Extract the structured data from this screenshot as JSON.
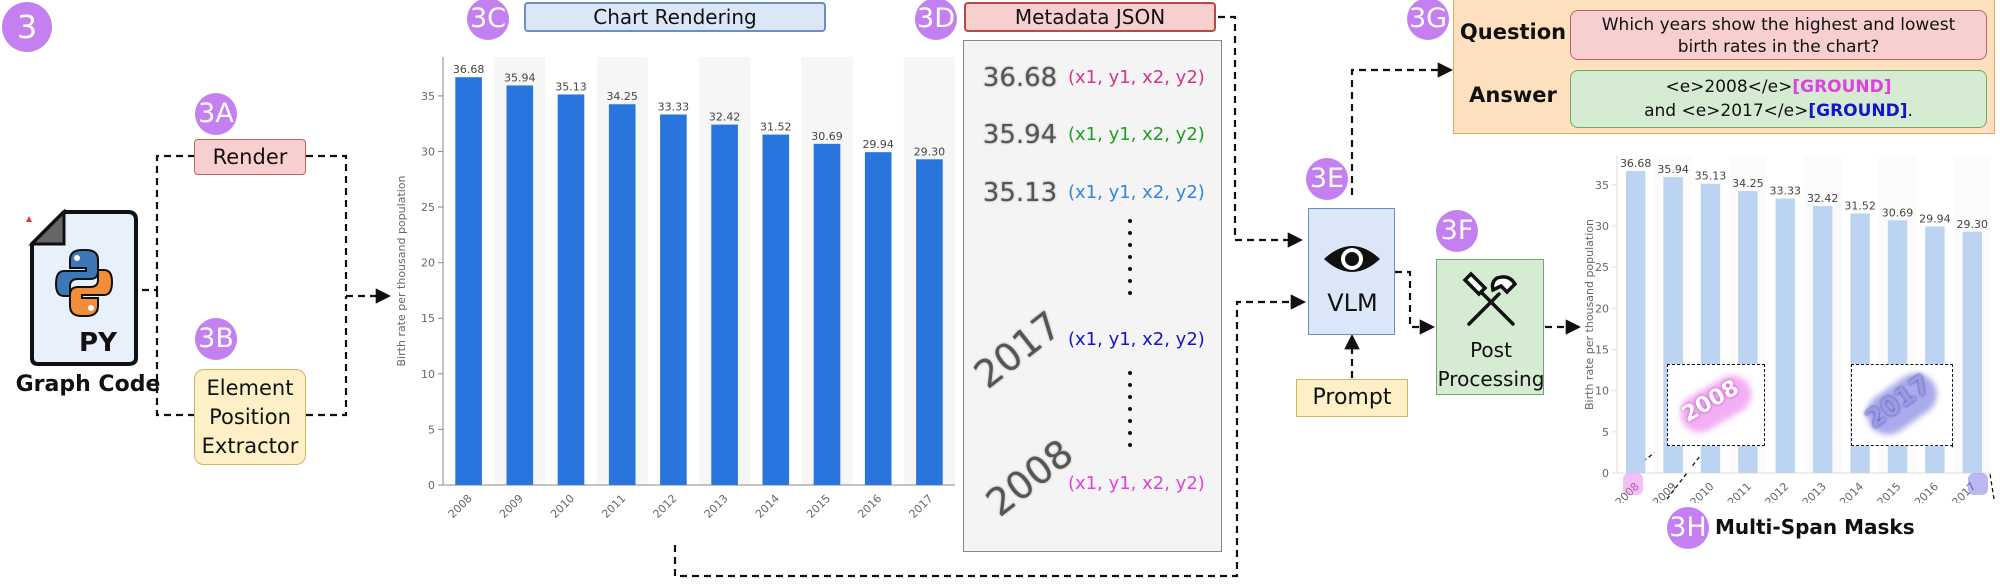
{
  "stage": {
    "main_badge": "3",
    "render_badge": "3A",
    "extractor_badge": "3B",
    "chart_badge": "3C",
    "meta_badge": "3D",
    "vlm_badge": "3E",
    "post_badge": "3F",
    "qa_badge": "3G",
    "masks_badge": "3H"
  },
  "graph_code": {
    "file_ext": "PY",
    "label": "Graph Code"
  },
  "render_label": "Render",
  "extractor_label": [
    "Element",
    "Position",
    "Extractor"
  ],
  "chart_title": "Chart Rendering",
  "meta_title": "Metadata JSON",
  "metadata_entries": [
    {
      "value": "36.68",
      "coords": "(x1, y1, x2, y2)",
      "color": "#d6338a"
    },
    {
      "value": "35.94",
      "coords": "(x1, y1, x2, y2)",
      "color": "#1f9e1f"
    },
    {
      "value": "35.13",
      "coords": "(x1, y1, x2, y2)",
      "color": "#2f86e0"
    },
    {
      "value": "2017",
      "coords": "(x1, y1, x2, y2)",
      "color": "#1414c8"
    },
    {
      "value": "2008",
      "coords": "(x1, y1, x2, y2)",
      "color": "#e040e0"
    }
  ],
  "vlm_label": "VLM",
  "prompt_label": "Prompt",
  "post_label": [
    "Post",
    "Processing"
  ],
  "qa": {
    "question_label": "Question",
    "question_text": "Which years show the highest and lowest birth rates in the chart?",
    "answer_label": "Answer",
    "answer_line1_pre": "<e>2008</e>",
    "answer_line1_tag": "[GROUND]",
    "answer_line2_pre": "and <e>2017</e>",
    "answer_line2_tag": "[GROUND]",
    "answer_line2_post": "."
  },
  "masks_label": "Multi-Span Masks",
  "mask_zoom_labels": [
    "2008",
    "2017"
  ],
  "colors": {
    "bar": "#2a74dd",
    "bar_faded": "#bcd3f2",
    "badge": "#c47ff0"
  },
  "chart_data": {
    "type": "bar",
    "categories": [
      "2008",
      "2009",
      "2010",
      "2011",
      "2012",
      "2013",
      "2014",
      "2015",
      "2016",
      "2017"
    ],
    "values": [
      36.68,
      35.94,
      35.13,
      34.25,
      33.33,
      32.42,
      31.52,
      30.69,
      29.94,
      29.3
    ],
    "data_labels": [
      "36.68",
      "35.94",
      "35.13",
      "34.25",
      "33.33",
      "32.42",
      "31.52",
      "30.69",
      "29.94",
      "29.30"
    ],
    "ylabel": "Birth rate per thousand population",
    "xlabel": "",
    "yticks": [
      0,
      5,
      10,
      15,
      20,
      25,
      30,
      35
    ],
    "ylim": [
      0,
      38.5
    ],
    "grid": false
  }
}
